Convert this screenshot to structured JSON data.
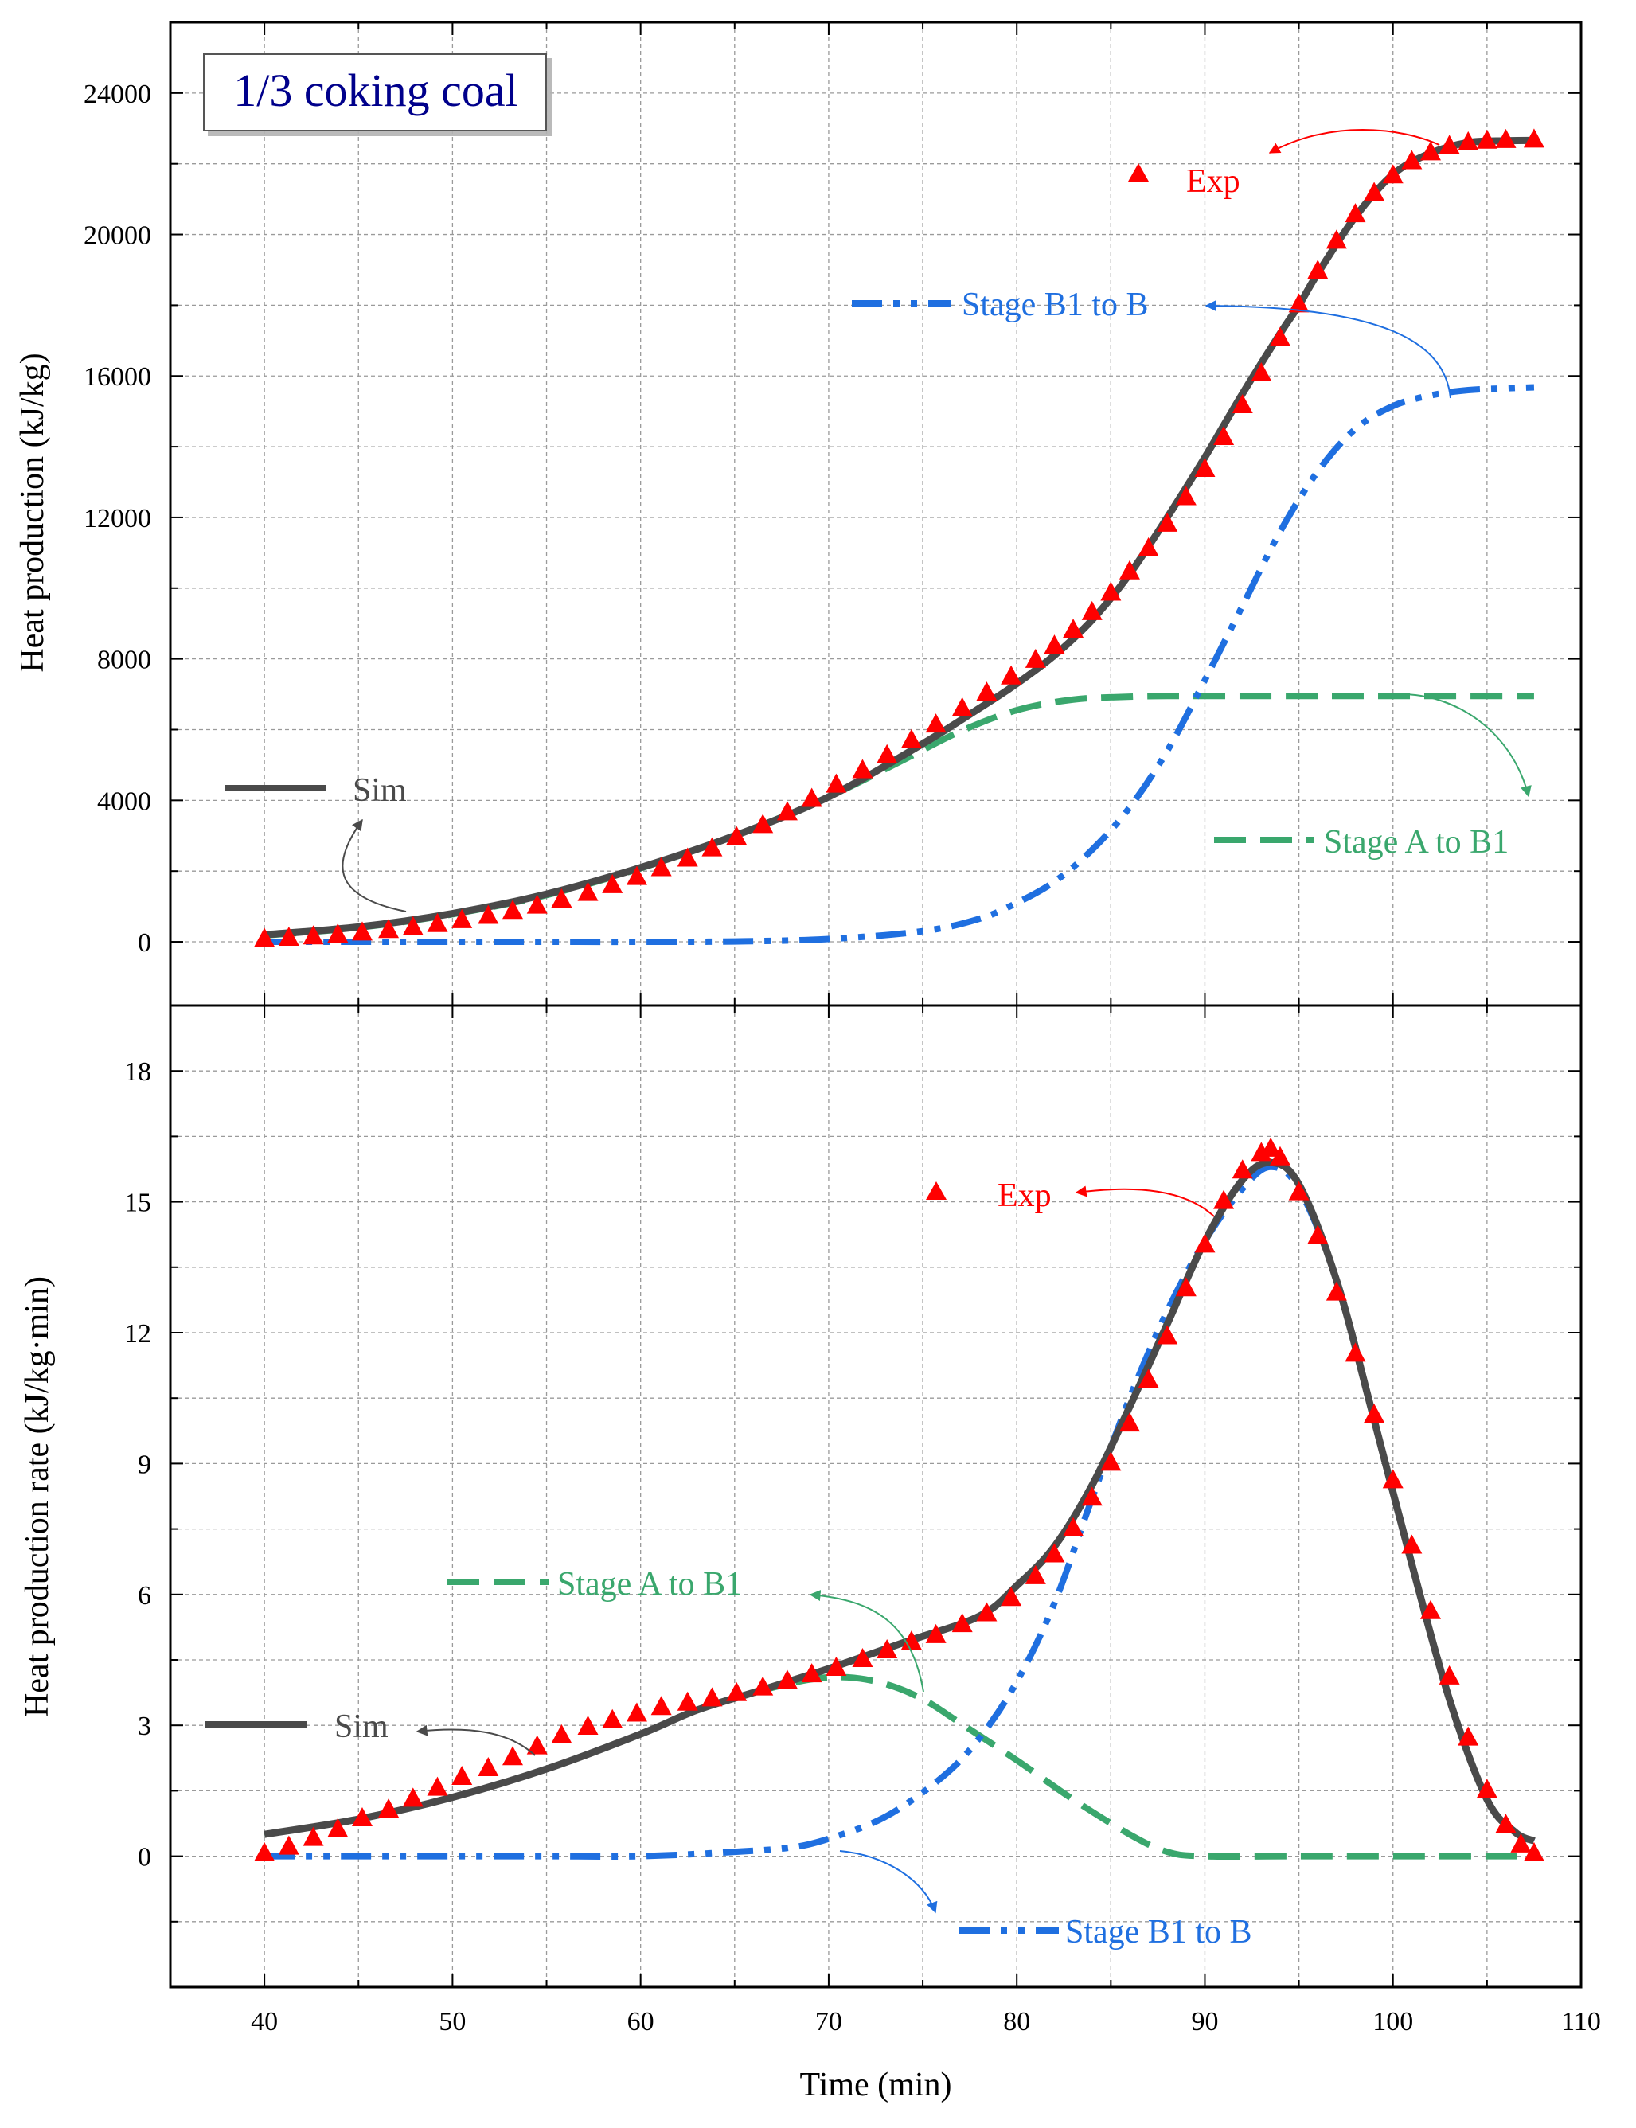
{
  "colors": {
    "sim": "#4a4a4a",
    "exp": "#ff0000",
    "stage_a": "#3aa76d",
    "stage_b": "#1f6fe0",
    "grid": "#9a9a9a",
    "inset_title": "#00008b"
  },
  "chart_data": [
    {
      "type": "line",
      "panel": "top",
      "inset_title": "1/3 coking coal",
      "xlabel": "Time (min)",
      "ylabel": "Heat production (kJ/kg)",
      "xlim": [
        35,
        110
      ],
      "ylim": [
        -1800,
        26000
      ],
      "xticks": [
        40,
        50,
        60,
        70,
        80,
        90,
        100,
        110
      ],
      "yticks": [
        0,
        4000,
        8000,
        12000,
        16000,
        20000,
        24000
      ],
      "ytick_labels": [
        "0",
        "4000",
        "8000",
        "12000",
        "16000",
        "20000",
        "24000"
      ],
      "grid": true,
      "series": [
        {
          "name": "Sim",
          "style": "solid",
          "color": "sim",
          "x": [
            40,
            45,
            50,
            55,
            60,
            65,
            70,
            75,
            78,
            80,
            82,
            84,
            86,
            88,
            90,
            92,
            94,
            95,
            96,
            98,
            100,
            102,
            104,
            106,
            107.5
          ],
          "y": [
            200,
            420,
            800,
            1350,
            2100,
            3000,
            4100,
            5600,
            6600,
            7300,
            8100,
            9100,
            10400,
            12000,
            13700,
            15500,
            17200,
            18000,
            18900,
            20500,
            21700,
            22300,
            22600,
            22650,
            22660
          ]
        },
        {
          "name": "Exp",
          "style": "triangle",
          "color": "exp",
          "x": [
            40,
            41.3,
            42.6,
            43.9,
            45.2,
            46.6,
            47.9,
            49.2,
            50.5,
            51.9,
            53.2,
            54.5,
            55.8,
            57.2,
            58.5,
            59.8,
            61.1,
            62.5,
            63.8,
            65.1,
            66.5,
            67.8,
            69.1,
            70.4,
            71.8,
            73.1,
            74.4,
            75.7,
            77.1,
            78.4,
            79.7,
            81,
            82,
            83,
            84,
            85,
            86,
            87,
            88,
            89,
            90,
            91,
            92,
            93,
            94,
            95,
            96,
            97,
            98,
            99,
            100,
            101,
            102,
            103,
            104,
            105,
            106,
            107.5
          ],
          "y": [
            60,
            90,
            130,
            180,
            240,
            310,
            390,
            480,
            590,
            710,
            850,
            1000,
            1170,
            1360,
            1580,
            1810,
            2060,
            2330,
            2620,
            2940,
            3280,
            3640,
            4020,
            4420,
            4830,
            5250,
            5680,
            6120,
            6580,
            7020,
            7480,
            7950,
            8350,
            8800,
            9300,
            9850,
            10450,
            11100,
            11800,
            12550,
            13350,
            14250,
            15150,
            16050,
            17050,
            18000,
            18950,
            19800,
            20550,
            21150,
            21650,
            22050,
            22300,
            22480,
            22580,
            22630,
            22650,
            22660
          ]
        },
        {
          "name": "Stage A to B1",
          "style": "dash",
          "color": "stage_a",
          "x": [
            40,
            45,
            50,
            55,
            60,
            65,
            70,
            74,
            77,
            80,
            83,
            86,
            88,
            90,
            95,
            100,
            107.5
          ],
          "y": [
            180,
            400,
            780,
            1320,
            2080,
            3000,
            4100,
            5150,
            5950,
            6550,
            6850,
            6930,
            6950,
            6950,
            6950,
            6950,
            6950
          ]
        },
        {
          "name": "Stage B1 to B",
          "style": "dashdotdot",
          "color": "stage_b",
          "x": [
            40,
            45,
            50,
            55,
            60,
            65,
            70,
            75,
            78,
            80,
            82,
            84,
            86,
            88,
            90,
            92,
            94,
            96,
            98,
            100,
            102,
            104,
            106,
            107.5
          ],
          "y": [
            0,
            0,
            0,
            0,
            0,
            10,
            80,
            300,
            650,
            1100,
            1700,
            2600,
            3800,
            5400,
            7400,
            9500,
            11600,
            13300,
            14500,
            15150,
            15450,
            15600,
            15650,
            15680
          ]
        }
      ],
      "annotations": [
        {
          "text": "Exp",
          "color": "exp"
        },
        {
          "text": "Stage B1 to B",
          "color": "stage_b"
        },
        {
          "text": "Sim",
          "color": "sim"
        },
        {
          "text": "Stage A to B1",
          "color": "stage_a"
        }
      ]
    },
    {
      "type": "line",
      "panel": "bottom",
      "xlabel": "Time (min)",
      "ylabel": "Heat production rate (kJ/kg·min)",
      "xlim": [
        35,
        110
      ],
      "ylim": [
        -3,
        19.5
      ],
      "xticks": [
        40,
        50,
        60,
        70,
        80,
        90,
        100,
        110
      ],
      "xtick_labels": [
        "40",
        "50",
        "60",
        "70",
        "80",
        "90",
        "100",
        "110"
      ],
      "yticks": [
        0,
        3,
        6,
        9,
        12,
        15,
        18
      ],
      "ytick_labels": [
        "0",
        "3",
        "6",
        "9",
        "12",
        "15",
        "18"
      ],
      "grid": true,
      "series": [
        {
          "name": "Sim",
          "style": "solid",
          "color": "sim",
          "x": [
            40,
            45,
            50,
            55,
            60,
            63,
            66,
            70,
            74,
            78,
            80,
            82,
            84,
            86,
            88,
            90,
            92,
            93.5,
            95,
            97,
            99,
            101,
            103,
            105,
            106.5,
            107.5
          ],
          "y": [
            0.5,
            0.85,
            1.35,
            2.0,
            2.8,
            3.35,
            3.75,
            4.3,
            4.9,
            5.5,
            6.2,
            7.1,
            8.5,
            10.3,
            12.2,
            14.1,
            15.5,
            15.9,
            15.4,
            13.2,
            10.0,
            6.7,
            3.6,
            1.3,
            0.55,
            0.35
          ]
        },
        {
          "name": "Exp",
          "style": "triangle",
          "color": "exp",
          "x": [
            40,
            41.3,
            42.6,
            43.9,
            45.2,
            46.6,
            47.9,
            49.2,
            50.5,
            51.9,
            53.2,
            54.5,
            55.8,
            57.2,
            58.5,
            59.8,
            61.1,
            62.5,
            63.8,
            65.1,
            66.5,
            67.8,
            69.1,
            70.4,
            71.8,
            73.1,
            74.4,
            75.7,
            77.1,
            78.4,
            79.7,
            81,
            82,
            83,
            84,
            85,
            86,
            87,
            88,
            89,
            90,
            91,
            92,
            93,
            93.5,
            94,
            95,
            96,
            97,
            98,
            99,
            100,
            101,
            102,
            103,
            104,
            105,
            106,
            106.8,
            107.5
          ],
          "y": [
            0.05,
            0.2,
            0.4,
            0.6,
            0.85,
            1.05,
            1.3,
            1.55,
            1.8,
            2.0,
            2.25,
            2.5,
            2.75,
            2.95,
            3.1,
            3.25,
            3.4,
            3.5,
            3.6,
            3.72,
            3.85,
            4.0,
            4.15,
            4.3,
            4.5,
            4.7,
            4.9,
            5.05,
            5.3,
            5.55,
            5.9,
            6.4,
            6.9,
            7.5,
            8.2,
            9.0,
            9.9,
            10.9,
            11.9,
            13.0,
            14.0,
            15.0,
            15.7,
            16.1,
            16.2,
            16.0,
            15.2,
            14.2,
            12.9,
            11.5,
            10.1,
            8.6,
            7.1,
            5.6,
            4.1,
            2.7,
            1.5,
            0.7,
            0.25,
            0.05
          ]
        },
        {
          "name": "Stage A to B1",
          "style": "dash",
          "color": "stage_a",
          "x": [
            40,
            45,
            50,
            55,
            60,
            63,
            66,
            69,
            71,
            73,
            75,
            77,
            80,
            83,
            86,
            88,
            90,
            95,
            100,
            107.5
          ],
          "y": [
            0.5,
            0.85,
            1.35,
            2.0,
            2.8,
            3.35,
            3.75,
            4.05,
            4.1,
            3.95,
            3.6,
            3.05,
            2.2,
            1.3,
            0.5,
            0.1,
            0,
            0,
            0,
            0
          ]
        },
        {
          "name": "Stage B1 to B",
          "style": "dashdotdot",
          "color": "stage_b",
          "x": [
            40,
            45,
            50,
            55,
            60,
            65,
            68,
            70,
            73,
            76,
            78,
            80,
            82,
            84,
            86,
            88,
            90,
            92,
            93.5,
            95,
            97,
            99,
            101,
            103,
            105,
            106.5,
            107.5
          ],
          "y": [
            0,
            0,
            0,
            0,
            0,
            0.1,
            0.2,
            0.4,
            0.9,
            1.8,
            2.7,
            4.0,
            5.8,
            8.2,
            10.5,
            12.5,
            14.1,
            15.3,
            15.8,
            15.3,
            13.2,
            10.0,
            6.7,
            3.6,
            1.3,
            0.55,
            0.35
          ]
        }
      ],
      "annotations": [
        {
          "text": "Exp",
          "color": "exp"
        },
        {
          "text": "Stage A to B1",
          "color": "stage_a"
        },
        {
          "text": "Sim",
          "color": "sim"
        },
        {
          "text": "Stage B1 to B",
          "color": "stage_b"
        }
      ]
    }
  ]
}
